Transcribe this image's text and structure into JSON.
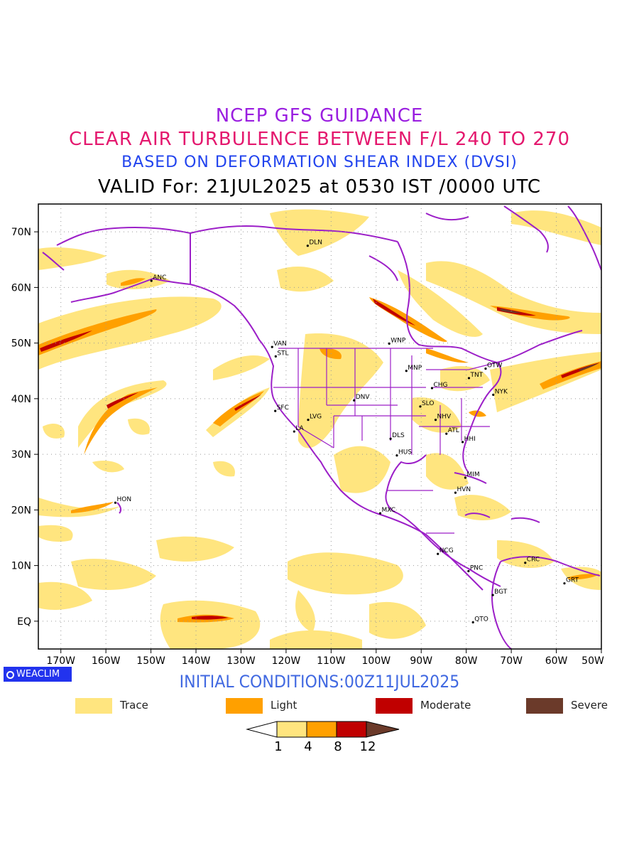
{
  "header": {
    "line1": "NCEP GFS GUIDANCE",
    "line2": "CLEAR AIR TURBULENCE BETWEEN F/L 240 TO 270",
    "line3": "BASED ON DEFORMATION SHEAR INDEX (DVSI)",
    "line4": "VALID For: 21JUL2025 at 0530 IST /0000 UTC"
  },
  "map": {
    "lat_labels": [
      "70N",
      "60N",
      "50N",
      "40N",
      "30N",
      "20N",
      "10N",
      "EQ"
    ],
    "lon_labels": [
      "170W",
      "160W",
      "150W",
      "140W",
      "130W",
      "120W",
      "110W",
      "100W",
      "90W",
      "80W",
      "70W",
      "60W",
      "50W"
    ],
    "cities": [
      {
        "name": "DLN",
        "lon": -115.2,
        "lat": 67.5
      },
      {
        "name": "ANC",
        "lon": -149.9,
        "lat": 61.2
      },
      {
        "name": "VAN",
        "lon": -123.1,
        "lat": 49.3
      },
      {
        "name": "STL",
        "lon": -122.3,
        "lat": 47.6
      },
      {
        "name": "WNP",
        "lon": -97.1,
        "lat": 49.9
      },
      {
        "name": "MNP",
        "lon": -93.3,
        "lat": 45.0
      },
      {
        "name": "TNT",
        "lon": -79.4,
        "lat": 43.7
      },
      {
        "name": "OTW",
        "lon": -75.7,
        "lat": 45.4
      },
      {
        "name": "CHG",
        "lon": -87.6,
        "lat": 41.9
      },
      {
        "name": "NYK",
        "lon": -74.0,
        "lat": 40.7
      },
      {
        "name": "DNV",
        "lon": -104.9,
        "lat": 39.7
      },
      {
        "name": "SFC",
        "lon": -122.4,
        "lat": 37.8
      },
      {
        "name": "LVG",
        "lon": -115.1,
        "lat": 36.2
      },
      {
        "name": "SLO",
        "lon": -90.2,
        "lat": 38.6
      },
      {
        "name": "NHV",
        "lon": -86.8,
        "lat": 36.2
      },
      {
        "name": "LA",
        "lon": -118.2,
        "lat": 34.1
      },
      {
        "name": "DLS",
        "lon": -96.8,
        "lat": 32.8
      },
      {
        "name": "ATL",
        "lon": -84.4,
        "lat": 33.7
      },
      {
        "name": "HHI",
        "lon": -80.8,
        "lat": 32.2
      },
      {
        "name": "HUS",
        "lon": -95.4,
        "lat": 29.8
      },
      {
        "name": "MIM",
        "lon": -80.2,
        "lat": 25.8
      },
      {
        "name": "HVN",
        "lon": -82.4,
        "lat": 23.1
      },
      {
        "name": "HON",
        "lon": -157.9,
        "lat": 21.3
      },
      {
        "name": "MXC",
        "lon": -99.1,
        "lat": 19.4
      },
      {
        "name": "NCG",
        "lon": -86.3,
        "lat": 12.1
      },
      {
        "name": "CRC",
        "lon": -66.9,
        "lat": 10.5
      },
      {
        "name": "PNC",
        "lon": -79.5,
        "lat": 9.0
      },
      {
        "name": "GRT",
        "lon": -58.2,
        "lat": 6.8
      },
      {
        "name": "BGT",
        "lon": -74.1,
        "lat": 4.7
      },
      {
        "name": "QTO",
        "lon": -78.5,
        "lat": -0.2
      }
    ]
  },
  "branding": {
    "label": "WEACLIM"
  },
  "initial_conditions": "INITIAL CONDITIONS:00Z11JUL2025",
  "legend": [
    {
      "label": "Trace",
      "color": "#ffe57f"
    },
    {
      "label": "Light",
      "color": "#ffa000"
    },
    {
      "label": "Moderate",
      "color": "#c00000"
    },
    {
      "label": "Severe",
      "color": "#6b3a2a"
    }
  ],
  "colorbar": {
    "ticks": [
      "1",
      "4",
      "8",
      "12"
    ],
    "colors": [
      "#ffffff",
      "#ffe57f",
      "#ffa000",
      "#c00000",
      "#6b3a2a"
    ]
  },
  "colors": {
    "border": "#9c1fc8",
    "frame": "#000000"
  }
}
